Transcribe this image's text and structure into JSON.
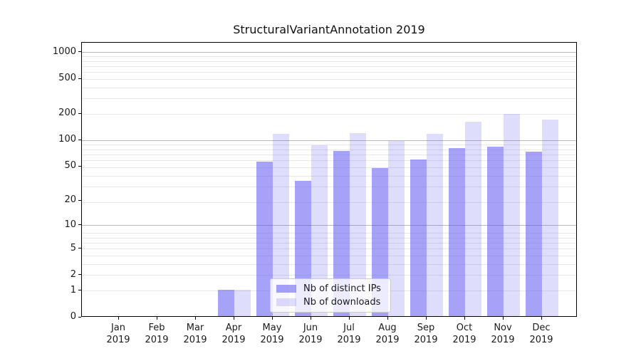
{
  "chart_data": {
    "type": "bar",
    "title": "StructuralVariantAnnotation 2019",
    "categories": [
      "Jan",
      "Feb",
      "Mar",
      "Apr",
      "May",
      "Jun",
      "Jul",
      "Aug",
      "Sep",
      "Oct",
      "Nov",
      "Dec"
    ],
    "x_year_label": "2019",
    "series": [
      {
        "name": "Nb of distinct IPs",
        "color": "#5c55f0",
        "alpha": 0.55,
        "approx_hex_on_white": "#a9a6f8",
        "values": [
          0,
          0,
          0,
          1,
          55,
          33,
          74,
          47,
          58,
          79,
          82,
          72
        ]
      },
      {
        "name": "Nb of downloads",
        "color": "#5c55f0",
        "alpha": 0.2,
        "approx_hex_on_white": "#dedcfb",
        "values": [
          0,
          0,
          0,
          1,
          115,
          85,
          117,
          96,
          114,
          158,
          193,
          168
        ]
      }
    ],
    "yscale": "log10(1+value)",
    "ylim": [
      0,
      1300
    ],
    "yticks": [
      0,
      1,
      2,
      5,
      10,
      20,
      50,
      100,
      200,
      500,
      1000
    ],
    "grid": {
      "on": true,
      "major_at": [
        10,
        100,
        1000
      ],
      "major_color": "#b9b9b9",
      "minor_color": "#e8e8e8"
    },
    "legend": {
      "position": "inside-bottom-center"
    }
  }
}
